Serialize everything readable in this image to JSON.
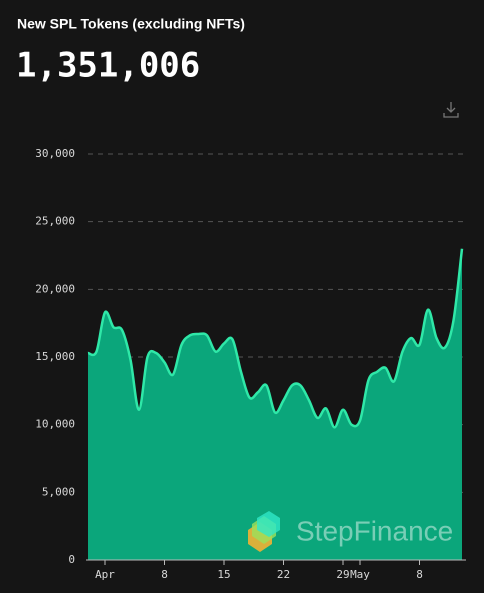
{
  "chart_data": {
    "type": "area",
    "title": "New SPL Tokens (excluding NFTs)",
    "headline": "1,351,006",
    "watermark": "StepFinance",
    "categories": [
      null,
      null,
      "Apr",
      null,
      null,
      null,
      null,
      null,
      null,
      "8",
      null,
      null,
      null,
      null,
      null,
      null,
      "15",
      null,
      null,
      null,
      null,
      null,
      null,
      "22",
      null,
      null,
      null,
      null,
      null,
      null,
      "29",
      null,
      "May",
      null,
      null,
      null,
      null,
      null,
      null,
      "8",
      null,
      null,
      null,
      null,
      null
    ],
    "values": [
      15300,
      15400,
      18300,
      17200,
      17000,
      14800,
      11100,
      15000,
      15300,
      14600,
      13700,
      15900,
      16600,
      16700,
      16600,
      15400,
      16000,
      16300,
      13900,
      12000,
      12400,
      12900,
      10900,
      11800,
      12900,
      12900,
      11800,
      10500,
      11200,
      9800,
      11100,
      10000,
      10300,
      13300,
      13900,
      14200,
      13200,
      15400,
      16400,
      15900,
      18500,
      16400,
      15700,
      17700,
      23000
    ],
    "color": "#0ba67b",
    "line_color": "#2fe8a8",
    "ylim": [
      0,
      30000
    ],
    "yticks": [
      0,
      {
        "value": 5000,
        "label": "5,000"
      },
      {
        "value": 10000,
        "label": "10,000"
      },
      {
        "value": 15000,
        "label": "15,000"
      },
      {
        "value": 20000,
        "label": "20,000"
      },
      {
        "value": 25000,
        "label": "25,000"
      },
      {
        "value": 30000,
        "label": "30,000"
      }
    ],
    "grid": true
  }
}
